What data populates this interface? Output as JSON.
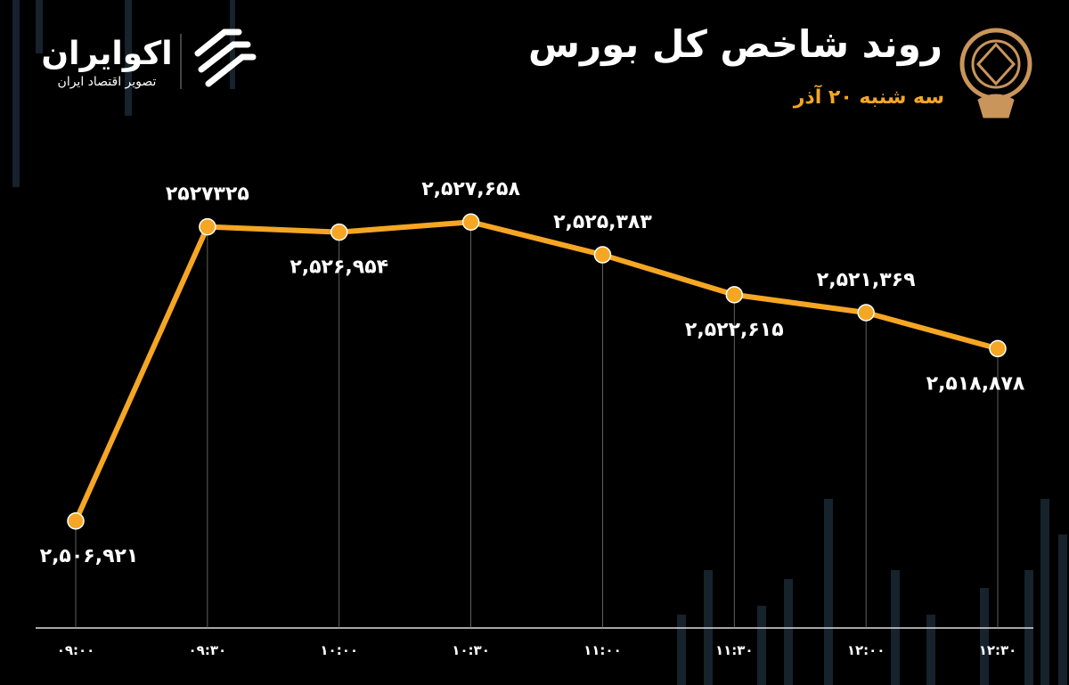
{
  "header": {
    "brand": "اکوایران",
    "tagline": "تصویر اقتصاد ایران"
  },
  "chart_data": {
    "type": "line",
    "title": "روند شاخص کل بورس",
    "subtitle": "سه شنبه ۲۰ آذر",
    "categories": [
      "۰۹:۰۰",
      "۰۹:۳۰",
      "۱۰:۰۰",
      "۱۰:۳۰",
      "۱۱:۰۰",
      "۱۱:۳۰",
      "۱۲:۰۰",
      "۱۲:۳۰"
    ],
    "values": [
      2506921,
      2527325,
      2526954,
      2527658,
      2525383,
      2522615,
      2521369,
      2518878
    ],
    "value_labels": [
      "۲,۵۰۶,۹۲۱",
      "۲۵۲۷۳۲۵",
      "۲,۵۲۶,۹۵۴",
      "۲,۵۲۷,۶۵۸",
      "۲,۵۲۵,۳۸۳",
      "۲,۵۲۲,۶۱۵",
      "۲,۵۲۱,۳۶۹",
      "۲,۵۱۸,۸۷۸"
    ],
    "color": "#f5a623",
    "ylim": [
      2499500,
      2530700
    ]
  }
}
